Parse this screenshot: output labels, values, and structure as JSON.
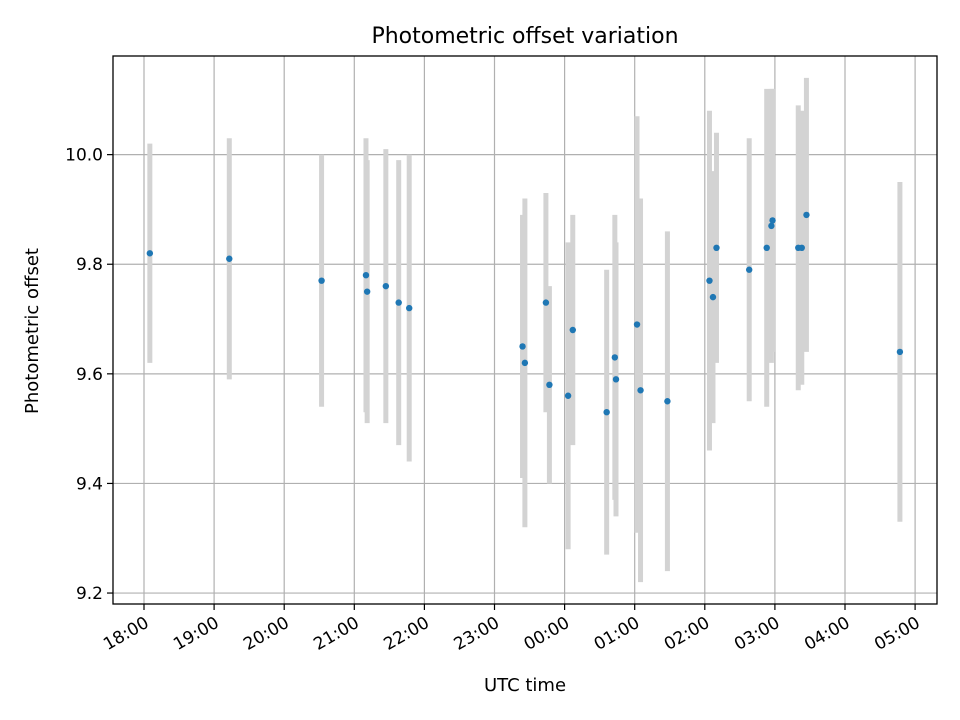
{
  "chart_data": {
    "type": "scatter",
    "title": "Photometric offset variation",
    "xlabel": "UTC time",
    "ylabel": "Photometric offset",
    "x_ticks": [
      "18:00",
      "19:00",
      "20:00",
      "21:00",
      "22:00",
      "23:00",
      "00:00",
      "01:00",
      "02:00",
      "03:00",
      "04:00",
      "05:00"
    ],
    "y_ticks": [
      "9.2",
      "9.4",
      "9.6",
      "9.8",
      "10.0"
    ],
    "ylim": [
      9.18,
      10.18
    ],
    "grid": true,
    "colors": {
      "point": "#1f77b4",
      "errorbar": "#d3d3d3"
    },
    "points": [
      {
        "t": "18:05",
        "y": 9.82,
        "yerr": 0.2
      },
      {
        "t": "19:13",
        "y": 9.81,
        "yerr": 0.22
      },
      {
        "t": "20:32",
        "y": 9.77,
        "yerr": 0.23
      },
      {
        "t": "21:10",
        "y": 9.78,
        "yerr": 0.25
      },
      {
        "t": "21:11",
        "y": 9.75,
        "yerr": 0.24
      },
      {
        "t": "21:27",
        "y": 9.76,
        "yerr": 0.25
      },
      {
        "t": "21:38",
        "y": 9.73,
        "yerr": 0.26
      },
      {
        "t": "21:47",
        "y": 9.72,
        "yerr": 0.28
      },
      {
        "t": "23:24",
        "y": 9.65,
        "yerr": 0.24
      },
      {
        "t": "23:26",
        "y": 9.62,
        "yerr": 0.3
      },
      {
        "t": "23:44",
        "y": 9.73,
        "yerr": 0.2
      },
      {
        "t": "23:47",
        "y": 9.58,
        "yerr": 0.18
      },
      {
        "t": "00:03",
        "y": 9.56,
        "yerr": 0.28
      },
      {
        "t": "00:07",
        "y": 9.68,
        "yerr": 0.21
      },
      {
        "t": "00:36",
        "y": 9.53,
        "yerr": 0.26
      },
      {
        "t": "00:43",
        "y": 9.63,
        "yerr": 0.26
      },
      {
        "t": "00:44",
        "y": 9.59,
        "yerr": 0.25
      },
      {
        "t": "01:02",
        "y": 9.69,
        "yerr": 0.38
      },
      {
        "t": "01:05",
        "y": 9.57,
        "yerr": 0.35
      },
      {
        "t": "01:28",
        "y": 9.55,
        "yerr": 0.31
      },
      {
        "t": "02:04",
        "y": 9.77,
        "yerr": 0.31
      },
      {
        "t": "02:07",
        "y": 9.74,
        "yerr": 0.23
      },
      {
        "t": "02:10",
        "y": 9.83,
        "yerr": 0.21
      },
      {
        "t": "02:38",
        "y": 9.79,
        "yerr": 0.24
      },
      {
        "t": "02:53",
        "y": 9.83,
        "yerr": 0.29
      },
      {
        "t": "02:57",
        "y": 9.87,
        "yerr": 0.25
      },
      {
        "t": "02:58",
        "y": 9.88,
        "yerr": 0.24
      },
      {
        "t": "03:20",
        "y": 9.83,
        "yerr": 0.26
      },
      {
        "t": "03:23",
        "y": 9.83,
        "yerr": 0.25
      },
      {
        "t": "03:27",
        "y": 9.89,
        "yerr": 0.25
      },
      {
        "t": "04:47",
        "y": 9.64,
        "yerr": 0.31
      }
    ]
  }
}
